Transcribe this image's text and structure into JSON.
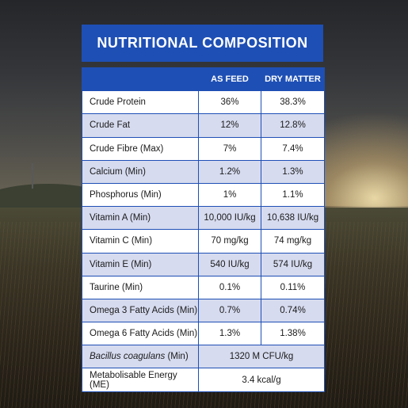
{
  "title": "NUTRITIONAL COMPOSITION",
  "table": {
    "headers": [
      "",
      "AS FEED",
      "DRY MATTER"
    ],
    "rows": [
      {
        "name": "Crude Protein",
        "as_feed": "36%",
        "dry_matter": "38.3%"
      },
      {
        "name": "Crude Fat",
        "as_feed": "12%",
        "dry_matter": "12.8%"
      },
      {
        "name": "Crude Fibre (Max)",
        "as_feed": "7%",
        "dry_matter": "7.4%"
      },
      {
        "name": "Calcium (Min)",
        "as_feed": "1.2%",
        "dry_matter": "1.3%"
      },
      {
        "name": "Phosphorus (Min)",
        "as_feed": "1%",
        "dry_matter": "1.1%"
      },
      {
        "name": "Vitamin A (Min)",
        "as_feed": "10,000 IU/kg",
        "dry_matter": "10,638 IU/kg"
      },
      {
        "name": "Vitamin C (Min)",
        "as_feed": "70 mg/kg",
        "dry_matter": "74 mg/kg"
      },
      {
        "name": "Vitamin E (Min)",
        "as_feed": "540 IU/kg",
        "dry_matter": "574 IU/kg"
      },
      {
        "name": "Taurine (Min)",
        "as_feed": "0.1%",
        "dry_matter": "0.11%"
      },
      {
        "name": "Omega 3 Fatty Acids (Min)",
        "as_feed": "0.7%",
        "dry_matter": "0.74%"
      },
      {
        "name": "Omega 6 Fatty Acids (Min)",
        "as_feed": "1.3%",
        "dry_matter": "1.38%"
      },
      {
        "name_italic": "Bacillus coagulans",
        "name_suffix": " (Min)",
        "combined": "1320 M CFU/kg"
      },
      {
        "name": "Metabolisable Energy (ME)",
        "combined": "3.4 kcal/g"
      }
    ]
  },
  "colors": {
    "accent": "#1e4fb5",
    "row_shade": "#d6dbef",
    "row_plain": "#ffffff"
  }
}
